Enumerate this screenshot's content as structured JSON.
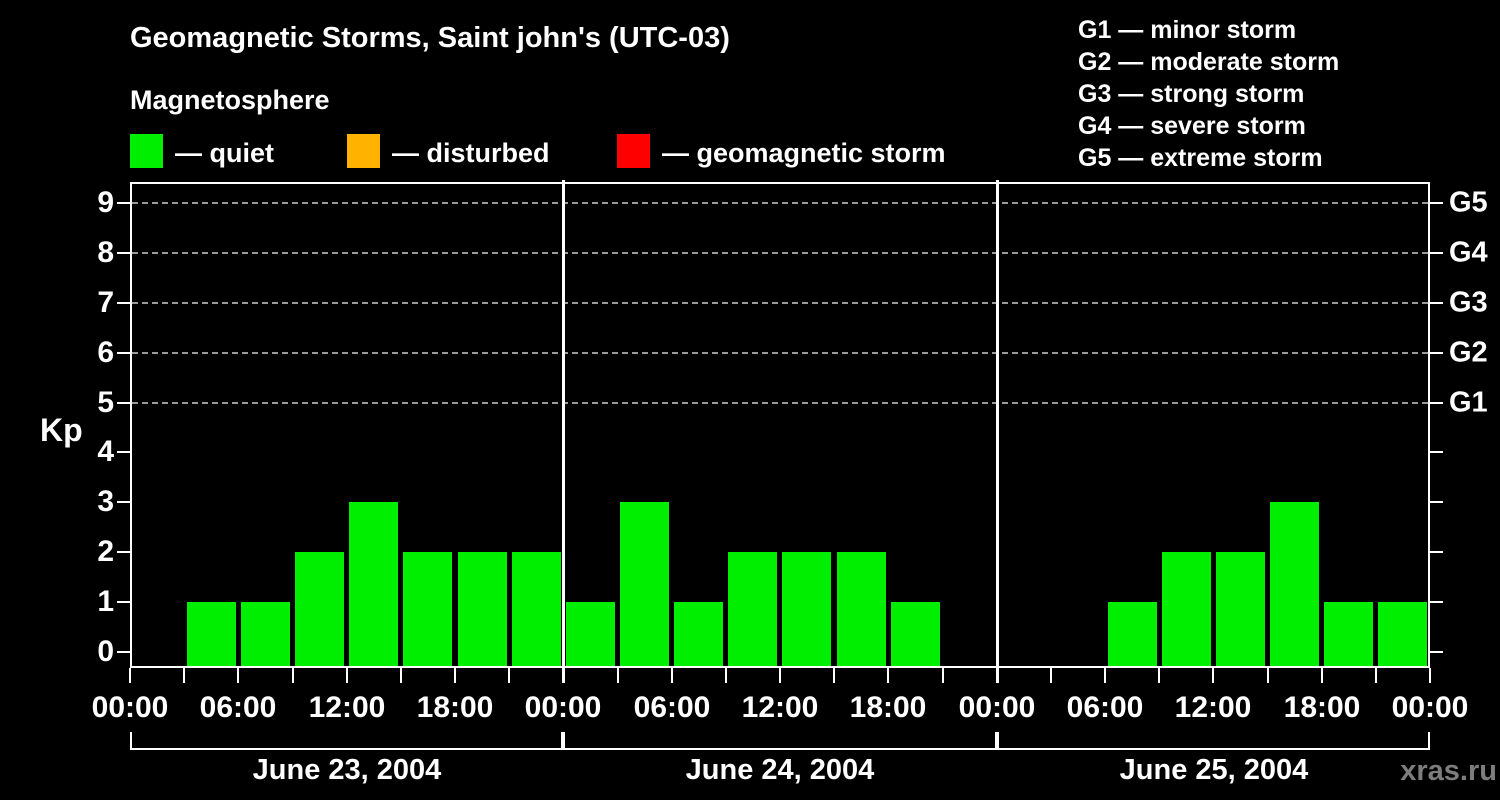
{
  "title": "Geomagnetic Storms, Saint john's (UTC-03)",
  "subtitle": "Magnetosphere",
  "legend": {
    "items": [
      {
        "label": "— quiet",
        "status": "quiet",
        "color": "#00EE00"
      },
      {
        "label": "— disturbed",
        "status": "disturbed",
        "color": "#FFB300"
      },
      {
        "label": "— geomagnetic storm",
        "status": "storm",
        "color": "#FF0000"
      }
    ]
  },
  "g_scale_legend": {
    "lines": [
      "G1 — minor storm",
      "G2 — moderate storm",
      "G3 — strong storm",
      "G4 — severe storm",
      "G5 — extreme storm"
    ]
  },
  "watermark": "xras.ru",
  "chart_data": {
    "type": "bar",
    "title": "Geomagnetic Storms, Saint john's (UTC-03)",
    "xlabel": "",
    "ylabel": "Kp",
    "ylim": [
      0,
      9
    ],
    "yticks": [
      0,
      1,
      2,
      3,
      4,
      5,
      6,
      7,
      8,
      9
    ],
    "gridlines_at_kp": [
      5,
      6,
      7,
      8,
      9
    ],
    "grid": "dashed horizontal at G-storm levels only",
    "right_axis": [
      {
        "kp": 5,
        "label": "G1"
      },
      {
        "kp": 6,
        "label": "G2"
      },
      {
        "kp": 7,
        "label": "G3"
      },
      {
        "kp": 8,
        "label": "G4"
      },
      {
        "kp": 9,
        "label": "G5"
      }
    ],
    "x_time_ticks": [
      "00:00",
      "06:00",
      "12:00",
      "18:00"
    ],
    "hours_per_bar": 3,
    "days": [
      {
        "date": "June 23, 2004",
        "values": [
          0,
          1,
          1,
          2,
          3,
          2,
          2,
          2
        ]
      },
      {
        "date": "June 24, 2004",
        "values": [
          1,
          3,
          1,
          2,
          2,
          2,
          1,
          0
        ]
      },
      {
        "date": "June 25, 2004",
        "values": [
          0,
          0,
          1,
          2,
          2,
          3,
          1,
          1
        ]
      }
    ],
    "bar_colors": {
      "quiet": "#00EE00",
      "disturbed": "#FFB300",
      "storm": "#FF0000"
    },
    "thresholds": {
      "quiet_max_kp": 3,
      "disturbed_max_kp": 4
    }
  }
}
